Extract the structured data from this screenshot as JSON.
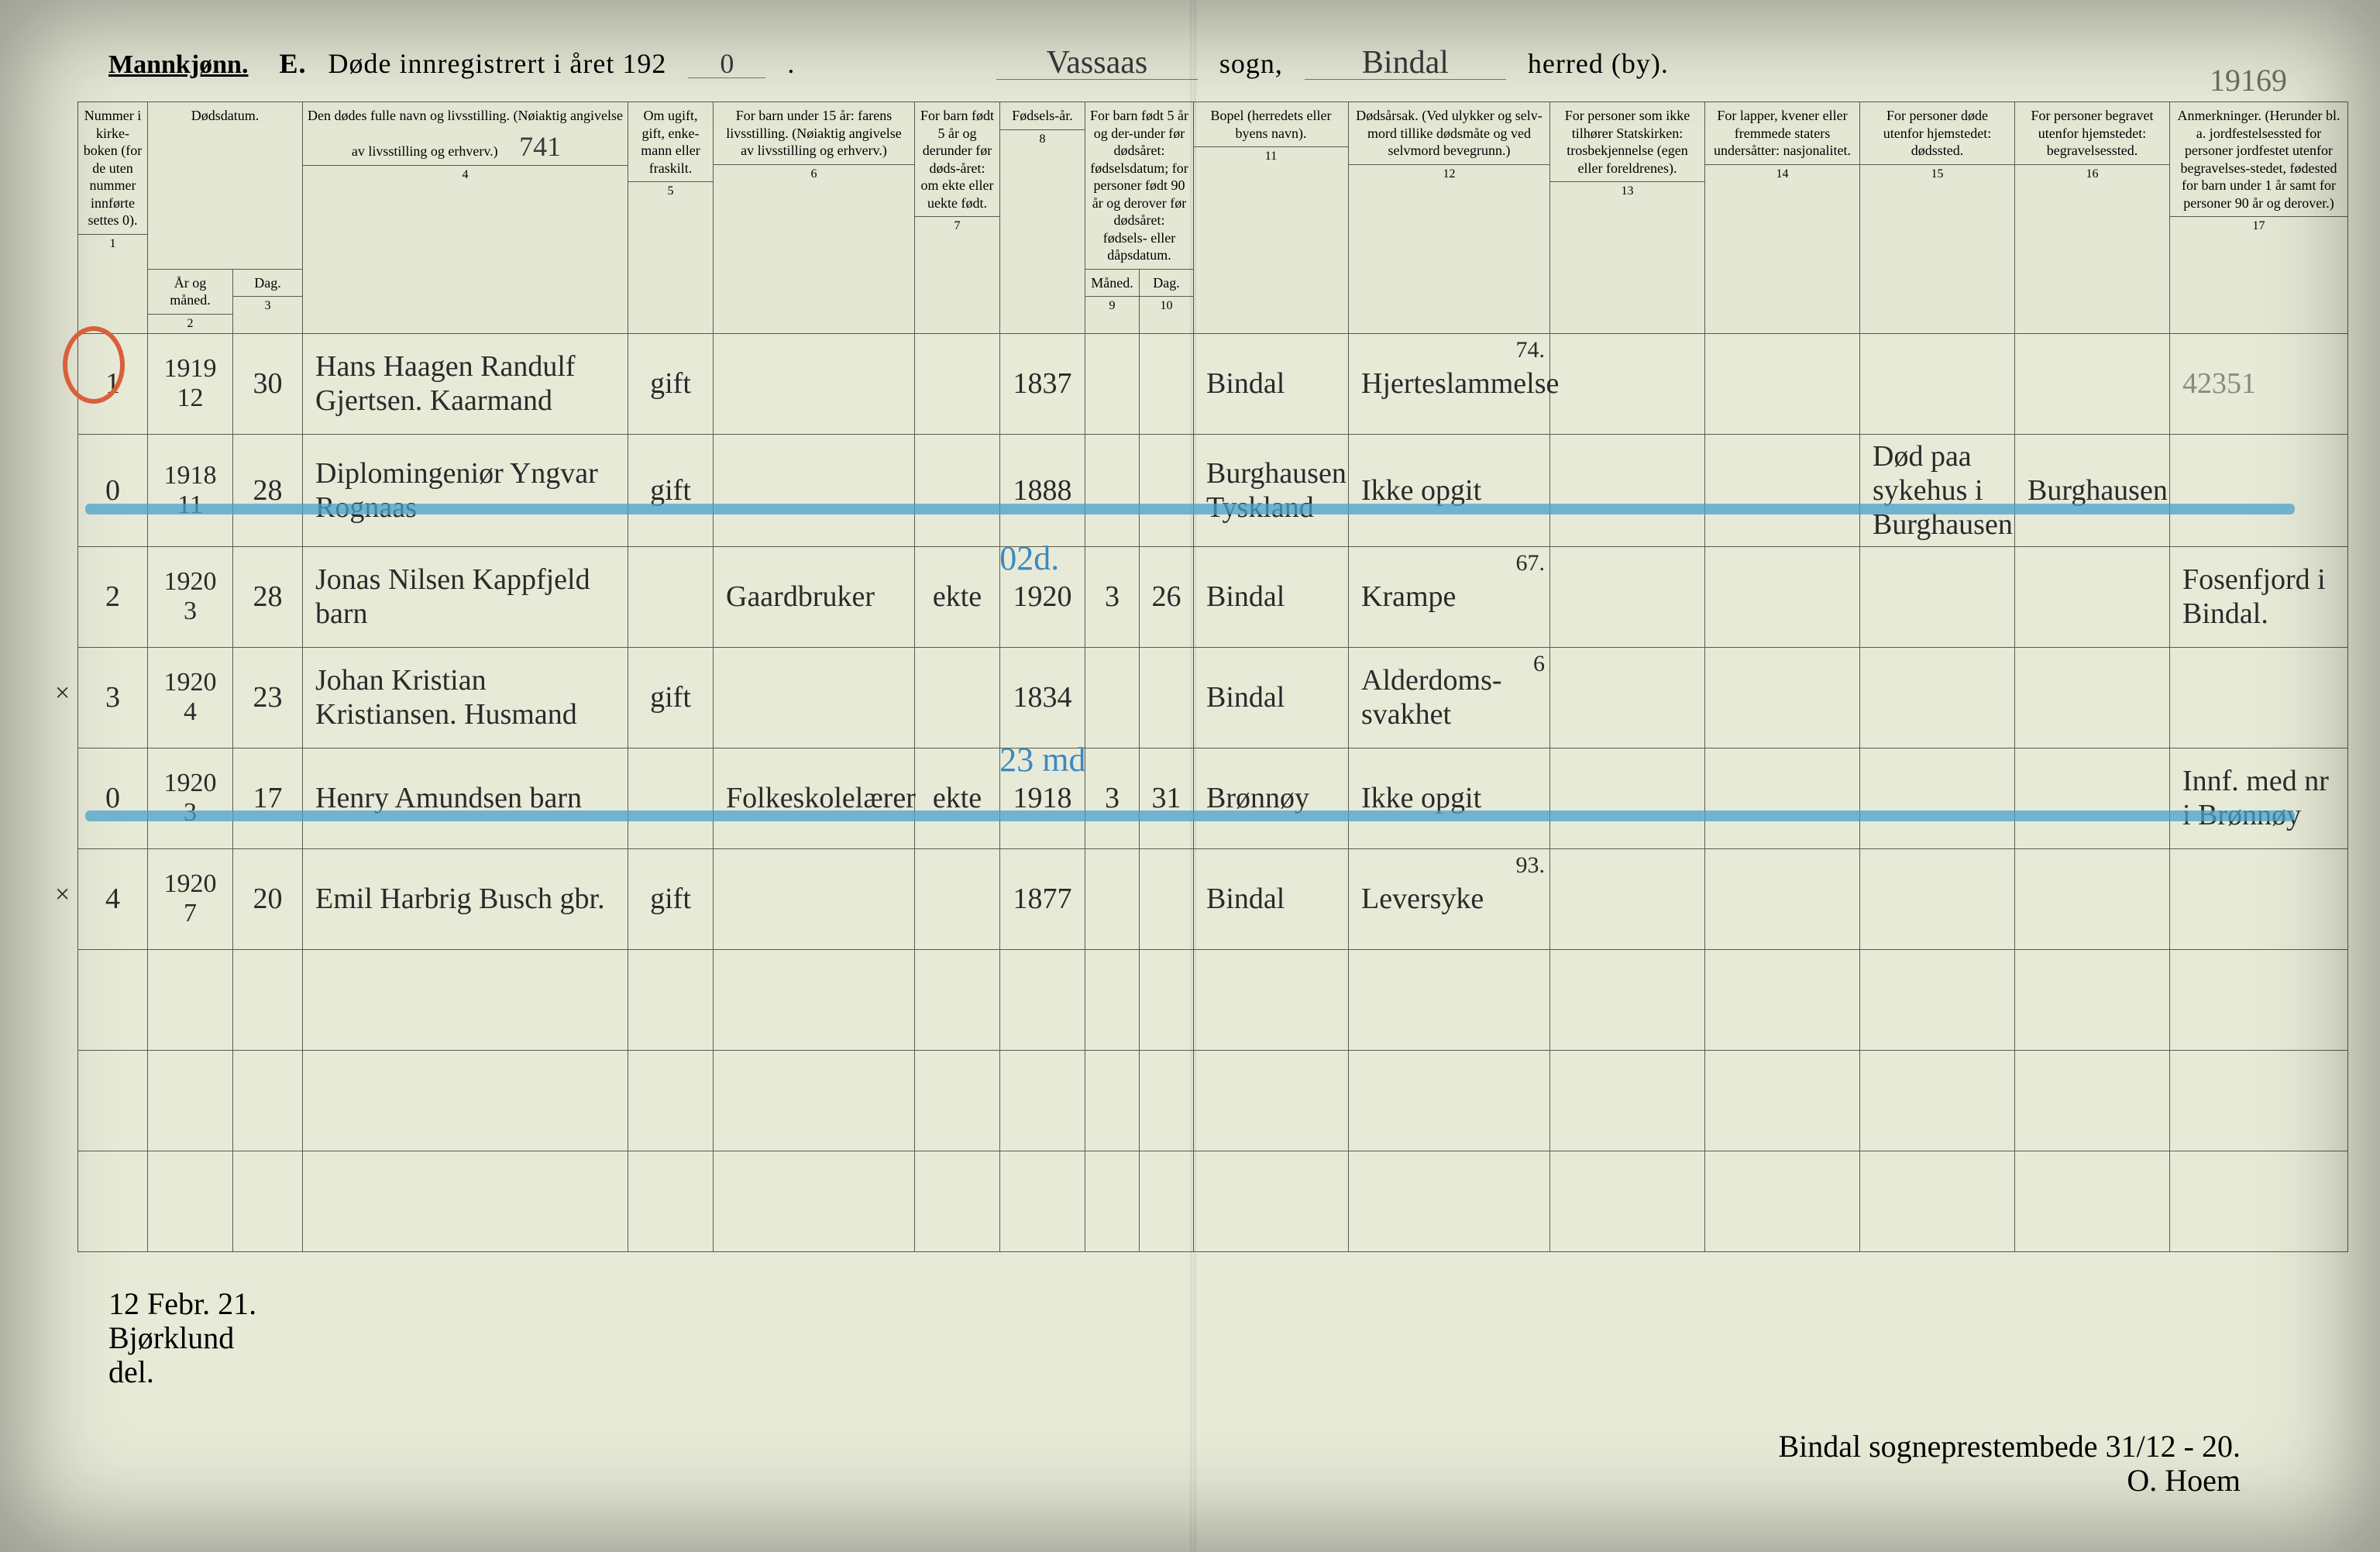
{
  "header": {
    "mannkjonn": "Mannkjønn.",
    "letter": "E.",
    "title_prefix": "Døde innregistrert i året 192",
    "year_suffix": "0",
    "sogn_value": "Vassaas",
    "sogn_label": "sogn,",
    "herred_value": "Bindal",
    "herred_label": "herred (by).",
    "page_number": "19169"
  },
  "columns": {
    "c1": "Nummer i kirke-boken (for de uten nummer innførte settes 0).",
    "c2_group": "Dødsdatum.",
    "c2": "År og måned.",
    "c3": "Dag.",
    "c4": "Den dødes fulle navn og livsstilling.\n(Nøiaktig angivelse av livsstilling og erhverv.)",
    "c4_hand": "741",
    "c5": "Om ugift, gift, enke-mann eller fraskilt.",
    "c6": "For barn under 15 år: farens livsstilling.\n(Nøiaktig angivelse av livsstilling og erhverv.)",
    "c7": "For barn født 5 år og derunder før døds-året: om ekte eller uekte født.",
    "c8": "Fødsels-år.",
    "c9_10_group": "For barn født 5 år og der-under før dødsåret: fødselsdatum; for personer født 90 år og derover før dødsåret: fødsels- eller dåpsdatum.",
    "c9": "Måned.",
    "c10": "Dag.",
    "c11": "Bopel\n(herredets eller byens navn).",
    "c12": "Dødsårsak.\n(Ved ulykker og selv-mord tillike dødsmåte og ved selvmord bevegrunn.)",
    "c13": "For personer som ikke tilhører Statskirken: trosbekjennelse (egen eller foreldrenes).",
    "c14": "For lapper, kvener eller fremmede staters undersåtter: nasjonalitet.",
    "c15": "For personer døde utenfor hjemstedet: dødssted.",
    "c16": "For personer begravet utenfor hjemstedet: begravelsessted.",
    "c17": "Anmerkninger.\n(Herunder bl. a. jordfestelsessted for personer jordfestet utenfor begravelses-stedet, fødested for barn under 1 år samt for personer 90 år og derover.)"
  },
  "col_numbers": [
    "1",
    "2",
    "3",
    "4",
    "5",
    "6",
    "7",
    "8",
    "9",
    "10",
    "11",
    "12",
    "13",
    "14",
    "15",
    "16",
    "17"
  ],
  "rows": [
    {
      "n": "1",
      "year": "1919",
      "month": "12",
      "day": "30",
      "name": "Hans Haagen Randulf Gjertsen. Kaarmand",
      "status": "gift",
      "c6": "",
      "c7": "",
      "birth": "1837",
      "c9": "",
      "c10": "",
      "bopel": "Bindal",
      "cause": "Hjerteslammelse",
      "age": "74.",
      "c13": "",
      "c14": "",
      "c15": "",
      "c16": "",
      "c17": "42351",
      "red_circle": true
    },
    {
      "n": "0",
      "year": "1918",
      "month": "11",
      "day": "28",
      "name": "Diplomingeniør Yngvar Rognaas",
      "status": "gift",
      "c6": "",
      "c7": "",
      "birth": "1888",
      "c9": "",
      "c10": "",
      "bopel": "Burghausen Tyskland",
      "cause": "Ikke opgit",
      "age": "",
      "c13": "",
      "c14": "",
      "c15": "Død paa sykehus i Burghausen",
      "c16": "Burghausen",
      "c17": "",
      "struck": true
    },
    {
      "n": "2",
      "year": "1920",
      "month": "3",
      "day": "28",
      "name": "Jonas Nilsen Kappfjeld barn",
      "status": "",
      "c6": "Gaardbruker",
      "c7": "ekte",
      "birth": "1920",
      "c9": "3",
      "c10": "26",
      "bopel": "Bindal",
      "cause": "Krampe",
      "age": "67.",
      "c13": "",
      "c14": "",
      "c15": "",
      "c16": "",
      "c17": "Fosenfjord i Bindal.",
      "blue_note": "02d."
    },
    {
      "n": "3",
      "year": "1920",
      "month": "4",
      "day": "23",
      "name": "Johan Kristian Kristiansen. Husmand",
      "status": "gift",
      "c6": "",
      "c7": "",
      "birth": "1834",
      "c9": "",
      "c10": "",
      "bopel": "Bindal",
      "cause": "Alderdoms-svakhet",
      "age": "6",
      "c13": "",
      "c14": "",
      "c15": "",
      "c16": "",
      "c17": "",
      "x_mark": true
    },
    {
      "n": "0",
      "year": "1920",
      "month": "3",
      "day": "17",
      "name": "Henry Amundsen barn",
      "status": "",
      "c6": "Folkeskolelærer",
      "c7": "ekte",
      "birth": "1918",
      "c9": "3",
      "c10": "31",
      "bopel": "Brønnøy",
      "cause": "Ikke opgit",
      "age": "",
      "c13": "",
      "c14": "",
      "c15": "",
      "c16": "",
      "c17": "Innf. med nr i Brønnøy",
      "struck": true,
      "blue_note": "23 md"
    },
    {
      "n": "4",
      "year": "1920",
      "month": "7",
      "day": "20",
      "name": "Emil Harbrig Busch gbr.",
      "status": "gift",
      "c6": "",
      "c7": "",
      "birth": "1877",
      "c9": "",
      "c10": "",
      "bopel": "Bindal",
      "cause": "Leversyke",
      "age": "93.",
      "c13": "",
      "c14": "",
      "c15": "",
      "c16": "",
      "c17": "",
      "x_mark": true
    }
  ],
  "empty_rows": 3,
  "footer": {
    "left1": "12 Febr. 21.",
    "left2": "Bjørklund",
    "left3": "del.",
    "right1": "Bindal sogneprestembede 31/12 - 20.",
    "right2": "O. Hoem"
  },
  "colors": {
    "paper": "#e8ead8",
    "line": "#5a5a4a",
    "ink": "#2a2a2a",
    "blue": "#4aa0cc",
    "blue_text": "#3a8abf",
    "red": "#d9603a"
  }
}
